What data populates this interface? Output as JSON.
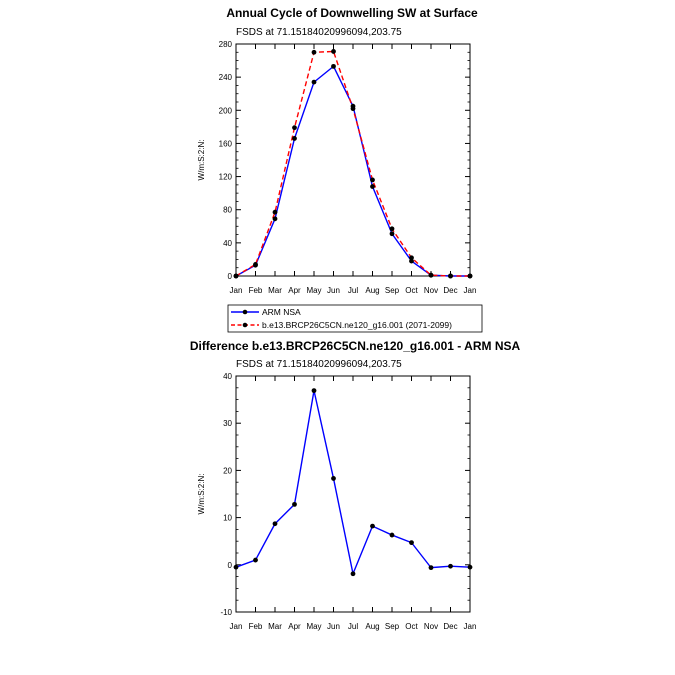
{
  "chart_data": [
    {
      "type": "line",
      "title": "Annual Cycle of Downwelling SW at Surface",
      "subtitle": "FSDS at 71.15184020996094,203.75",
      "ylabel": "W/m:S:2:N:",
      "xlabel": "",
      "ylim": [
        0,
        280
      ],
      "yticks": [
        0,
        40,
        80,
        120,
        160,
        200,
        240,
        280
      ],
      "categories": [
        "Jan",
        "Feb",
        "Mar",
        "Apr",
        "May",
        "Jun",
        "Jul",
        "Aug",
        "Sep",
        "Oct",
        "Nov",
        "Dec",
        "Jan"
      ],
      "grid": false,
      "legend_position": "below",
      "series": [
        {
          "name": "ARM NSA",
          "color": "#0000ff",
          "dash": "solid",
          "values": [
            0,
            13,
            69,
            166,
            234,
            253,
            205,
            108,
            51,
            18,
            1,
            0,
            0
          ]
        },
        {
          "name": "b.e13.BRCP26C5CN.ne120_g16.001 (2071-2099)",
          "color": "#ff0000",
          "dash": "dashed",
          "values": [
            0,
            14,
            77,
            179,
            270,
            271,
            202,
            116,
            57,
            22,
            1,
            0,
            0
          ]
        }
      ]
    },
    {
      "type": "line",
      "title": "Difference b.e13.BRCP26C5CN.ne120_g16.001 - ARM NSA",
      "subtitle": "FSDS at 71.15184020996094,203.75",
      "ylabel": "W/m:S:2:N:",
      "xlabel": "",
      "ylim": [
        -10,
        40
      ],
      "yticks": [
        -10,
        0,
        10,
        20,
        30,
        40
      ],
      "categories": [
        "Jan",
        "Feb",
        "Mar",
        "Apr",
        "May",
        "Jun",
        "Jul",
        "Aug",
        "Sep",
        "Oct",
        "Nov",
        "Dec",
        "Jan"
      ],
      "grid": false,
      "series": [
        {
          "name": "",
          "color": "#0000ff",
          "dash": "solid",
          "values": [
            -0.5,
            1,
            8.7,
            12.8,
            36.9,
            18.3,
            -1.9,
            8.2,
            6.3,
            4.7,
            -0.6,
            -0.3,
            -0.5
          ]
        }
      ]
    }
  ]
}
